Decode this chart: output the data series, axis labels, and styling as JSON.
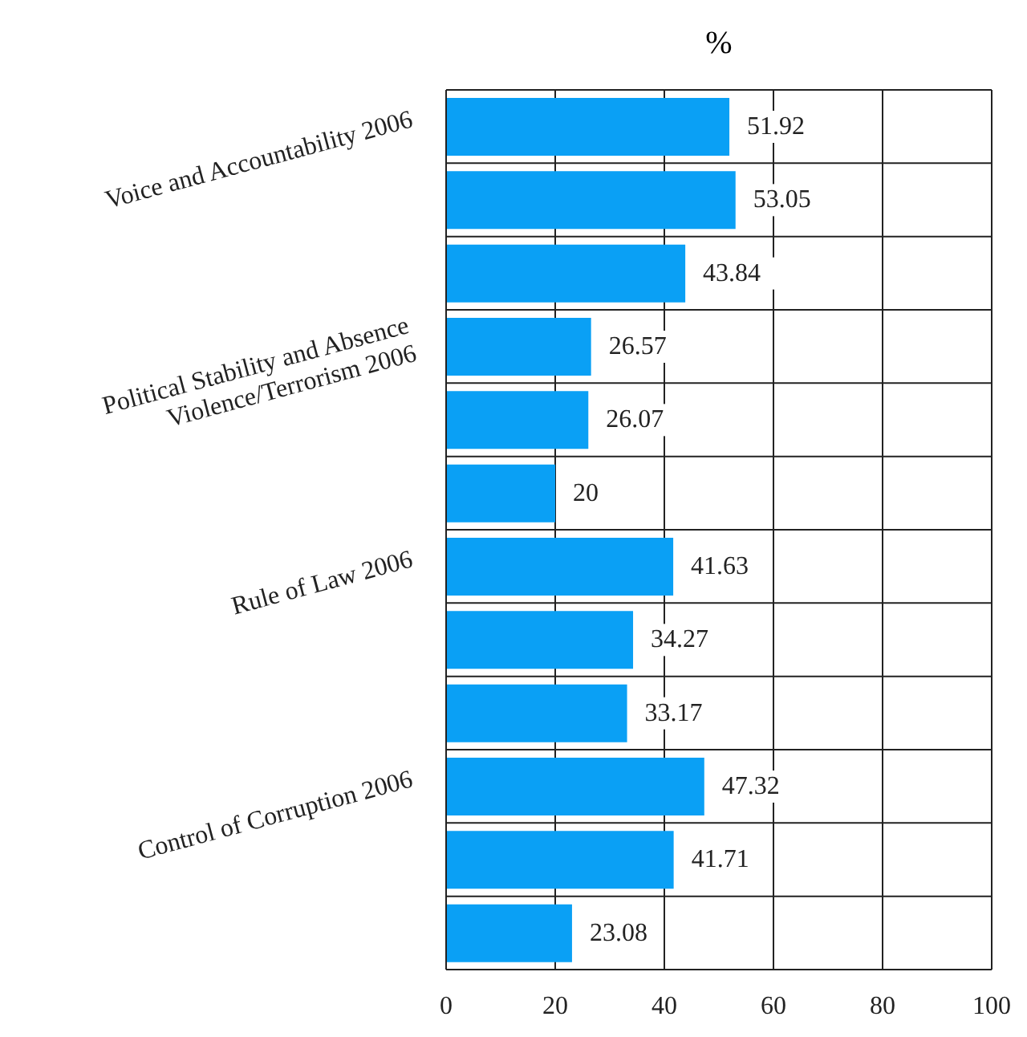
{
  "chart_data": {
    "type": "bar",
    "orientation": "horizontal",
    "title": "%",
    "categories": [
      "Voice and Accountability 2006",
      null,
      null,
      "Political Stability and Absence Violence/Terrorism 2006",
      null,
      null,
      "Rule of Law 2006",
      null,
      null,
      "Control of Corruption 2006",
      null,
      null
    ],
    "values": [
      51.92,
      53.05,
      43.84,
      26.57,
      26.07,
      20,
      41.63,
      34.27,
      33.17,
      47.32,
      41.71,
      23.08
    ],
    "color": "#0aa0f5",
    "xlim": [
      0,
      100
    ],
    "xticks": [
      0,
      20,
      40,
      60,
      80,
      100
    ],
    "grid": true,
    "data_labels": true
  }
}
